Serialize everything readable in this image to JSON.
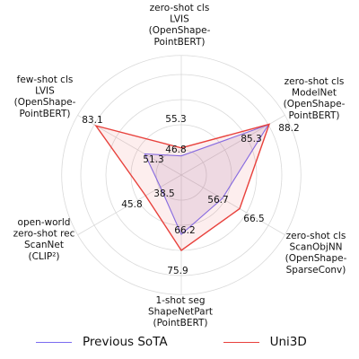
{
  "chart_data": {
    "type": "radar",
    "axes": [
      {
        "label": [
          "zero-shot cls",
          "LVIS",
          "(OpenShape-",
          "PointBERT)"
        ]
      },
      {
        "label": [
          "zero-shot cls",
          "ModelNet",
          "(OpenShape-",
          "PointBERT)"
        ]
      },
      {
        "label": [
          "zero-shot cls",
          "ScanObjNN",
          "(OpenShape-",
          "SparseConv)"
        ]
      },
      {
        "label": [
          "1-shot seg",
          "ShapeNetPart",
          "(PointBERT)"
        ]
      },
      {
        "label": [
          "open-world",
          "zero-shot rec",
          "ScanNet",
          "(CLIP²)"
        ]
      },
      {
        "label": [
          "few-shot cls",
          "LVIS",
          "(OpenShape-",
          "PointBERT)"
        ]
      }
    ],
    "series": [
      {
        "name": "Previous SoTA",
        "color": "#7b6cf0",
        "values": [
          46.8,
          85.3,
          56.7,
          66.2,
          38.5,
          51.3
        ],
        "relative_radius": [
          0.19,
          1.0,
          0.47,
          0.59,
          0.24,
          0.42
        ]
      },
      {
        "name": "Uni3D",
        "color": "#e8413c",
        "values": [
          55.3,
          88.2,
          66.5,
          75.9,
          45.8,
          83.1
        ],
        "relative_radius": [
          0.27,
          1.01,
          0.67,
          0.75,
          0.41,
          0.98
        ]
      }
    ],
    "grid": true,
    "grid_rings": 3,
    "legend_position": "bottom"
  },
  "legend": [
    {
      "name": "Previous SoTA",
      "color": "#7b6cf0"
    },
    {
      "name": "Uni3D",
      "color": "#e8413c"
    }
  ]
}
